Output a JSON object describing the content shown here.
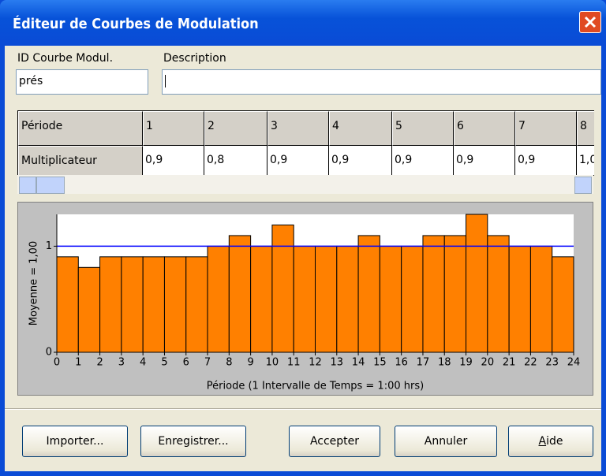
{
  "window": {
    "title": "Éditeur de Courbes de Modulation"
  },
  "fields": {
    "id_label": "ID Courbe Modul.",
    "id_value": "prés",
    "description_label": "Description"
  },
  "table": {
    "rows": [
      [
        "Période",
        "1",
        "2",
        "3",
        "4",
        "5",
        "6",
        "7",
        "8"
      ],
      [
        "Multiplicateur",
        "0,9",
        "0,8",
        "0,9",
        "0,9",
        "0,9",
        "0,9",
        "0,9",
        "1,0"
      ]
    ]
  },
  "chart_data": {
    "type": "histogram",
    "bins": [
      0,
      1,
      2,
      3,
      4,
      5,
      6,
      7,
      8,
      9,
      10,
      11,
      12,
      13,
      14,
      15,
      16,
      17,
      18,
      19,
      20,
      21,
      22,
      23,
      24
    ],
    "counts": [
      0.9,
      0.8,
      0.9,
      0.9,
      0.9,
      0.9,
      0.9,
      1.0,
      1.1,
      1.0,
      1.2,
      1.0,
      1.0,
      1.0,
      1.1,
      1.0,
      1.0,
      1.1,
      1.1,
      1.3,
      1.1,
      1.0,
      1.0,
      0.9
    ],
    "color": "#ff8000",
    "mean_line": 1,
    "mean_color": "#0000ff",
    "xlim": [
      0,
      24
    ],
    "xticks": [
      0,
      1,
      2,
      3,
      4,
      5,
      6,
      7,
      8,
      9,
      10,
      11,
      12,
      13,
      14,
      15,
      16,
      17,
      18,
      19,
      20,
      21,
      22,
      23,
      24
    ],
    "ylim": [
      0,
      1.3
    ],
    "yticks": [
      0,
      1
    ],
    "xlabel": "Période (1 Intervalle de Temps = 1:00 hrs)",
    "ylabel": "Moyenne = 1,00"
  },
  "buttons": [
    "Importer...",
    "Enregistrer...",
    "Accepter",
    "Annuler",
    "Aide"
  ]
}
